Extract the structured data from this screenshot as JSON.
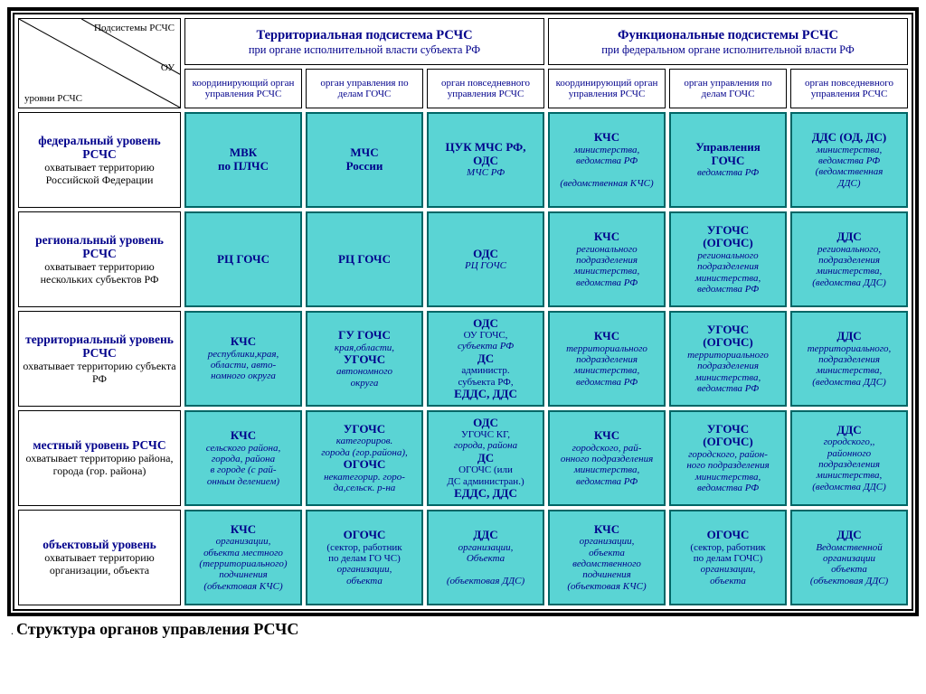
{
  "colors": {
    "cell_bg": "#5ad4d4",
    "cell_border": "#006666",
    "head_text": "#00008b",
    "paper": "#ffffff"
  },
  "corner": {
    "top": "Подсистемы\nРСЧС",
    "right": "ОУ",
    "bottom": "уровни\nРСЧС"
  },
  "groups": [
    {
      "title": "Территориальная подсистема РСЧС",
      "sub": "при органе исполнительной власти субъекта РФ"
    },
    {
      "title": "Функциональные подсистемы РСЧС",
      "sub": "при федеральном органе исполнительной власти РФ"
    }
  ],
  "subheads": [
    "координирующий орган управления РСЧС",
    "орган управления по делам ГОЧС",
    "орган повседневного управления РСЧС",
    "координирующий орган управления РСЧС",
    "орган управления по делам ГОЧС",
    "орган повседневного управления РСЧС"
  ],
  "rows": [
    {
      "title": "федеральный уровень РСЧС",
      "desc": "охватывает территорию Российской Федерации",
      "cells": [
        {
          "bold": "МВК\nпо ПЛЧС"
        },
        {
          "bold": "МЧС\nРоссии"
        },
        {
          "bold": "ЦУК МЧС РФ,\nОДС",
          "ital": " МЧС РФ"
        },
        {
          "bold": "КЧС",
          "ital": "министерства,\nведомства РФ\n\n(ведомственная КЧС)"
        },
        {
          "bold": "Управления\nГОЧС",
          "ital": "ведомства РФ"
        },
        {
          "bold": "ДДС (ОД, ДС)",
          "ital": "министерства,\nведомства РФ\n(ведомственная\nДДС)"
        }
      ]
    },
    {
      "title": "региональный уровень РСЧС",
      "desc": "охватывает территорию нескольких субъектов РФ",
      "cells": [
        {
          "bold": "РЦ ГОЧС"
        },
        {
          "bold": "РЦ ГОЧС"
        },
        {
          "bold": "ОДС",
          "ital": "РЦ ГОЧС"
        },
        {
          "bold": "КЧС",
          "ital": "регионального\nподразделения\nминистерства,\nведомства РФ"
        },
        {
          "bold": "УГОЧС\n(ОГОЧС)",
          "ital": "регионального\nподразделения\nминистерства,\nведомства РФ"
        },
        {
          "bold": "ДДС",
          "ital": "регионального,\nподразделения\nминистерства,\n(ведомства ДДС)"
        }
      ]
    },
    {
      "title": "территориальный уровень РСЧС",
      "desc": "охватывает территорию субъекта РФ",
      "cells": [
        {
          "bold": "КЧС",
          "ital": "республики,края,\nобласти, авто-\nномного округа"
        },
        {
          "bold": "ГУ ГОЧС",
          "ital": "края,области,",
          "bold2": "УГОЧС",
          "ital2": "автономного\nокруга"
        },
        {
          "bold": "ОДС",
          "plain": " ОУ ГОЧС,",
          "bold2": "ДС",
          "plain2": " администр.\nсубъекта РФ,",
          "bold3": "ЕДДС, ДДС",
          "ital": "субъекта РФ"
        },
        {
          "bold": "КЧС",
          "ital": "территориального\nподразделения\nминистерства,\nведомства РФ"
        },
        {
          "bold": "УГОЧС\n(ОГОЧС)",
          "ital": "территориального\nподразделения\nминистерства,\nведомства РФ"
        },
        {
          "bold": "ДДС",
          "ital": "территориального,\nподразделения\nминистерства,\n(ведомства ДДС)"
        }
      ]
    },
    {
      "title": "местный уровень РСЧС",
      "desc": "охватывает территорию района, города (гор. района)",
      "cells": [
        {
          "bold": "КЧС",
          "ital": "сельского района,\nгорода, района\nв городе (с рай-\nонным делением)"
        },
        {
          "bold": "УГОЧС",
          "ital": "категориров.\nгорода (гор.района),",
          "bold2": "ОГОЧС",
          "ital2": "некатегорир. горо-\nда,сельск. р-на"
        },
        {
          "bold": "ОДС",
          "plain": " УГОЧС КГ,",
          "bold2": "ДС",
          "plain2": " ОГОЧС (или\nДС администран.)",
          "bold3": "ЕДДС, ДДС",
          "ital": "города, района"
        },
        {
          "bold": "КЧС",
          "ital": "городского, рай-\nонного подразделения\nминистерства,\nведомства РФ"
        },
        {
          "bold": "УГОЧС\n(ОГОЧС)",
          "ital": "городского, район-\nного подразделения\nминистерства,\nведомства РФ"
        },
        {
          "bold": "ДДС",
          "ital": "городского,,\nрайонного\nподразделения\nминистерства,\n(ведомства ДДС)"
        }
      ]
    },
    {
      "title": "объектовый уровень",
      "desc": "охватывает территорию организации, объекта",
      "cells": [
        {
          "bold": "КЧС",
          "ital": "организации,\nобъекта местного\n(территориального)\nподчинения\n(объектовая КЧС)"
        },
        {
          "bold": "ОГОЧС",
          "plain": "(сектор, работник\nпо делам ГО ЧС)",
          "ital": "организации,\nобъекта"
        },
        {
          "bold": "ДДС",
          "ital": "организации,\nОбъекта\n\n(объектовая ДДС)"
        },
        {
          "bold": "КЧС",
          "ital": "организации,\nобъекта\nведомственного\nподчинения\n(объектовая КЧС)"
        },
        {
          "bold": "ОГОЧС",
          "plain": "(сектор, работник\nпо делам ГОЧС)",
          "ital": "организации,\nобъекта"
        },
        {
          "bold": "ДДС",
          "ital": "Ведомственной\nорганизации\nобъекта\n(объектовая ДДС)"
        }
      ]
    }
  ],
  "caption": "Структура органов управления РСЧС"
}
